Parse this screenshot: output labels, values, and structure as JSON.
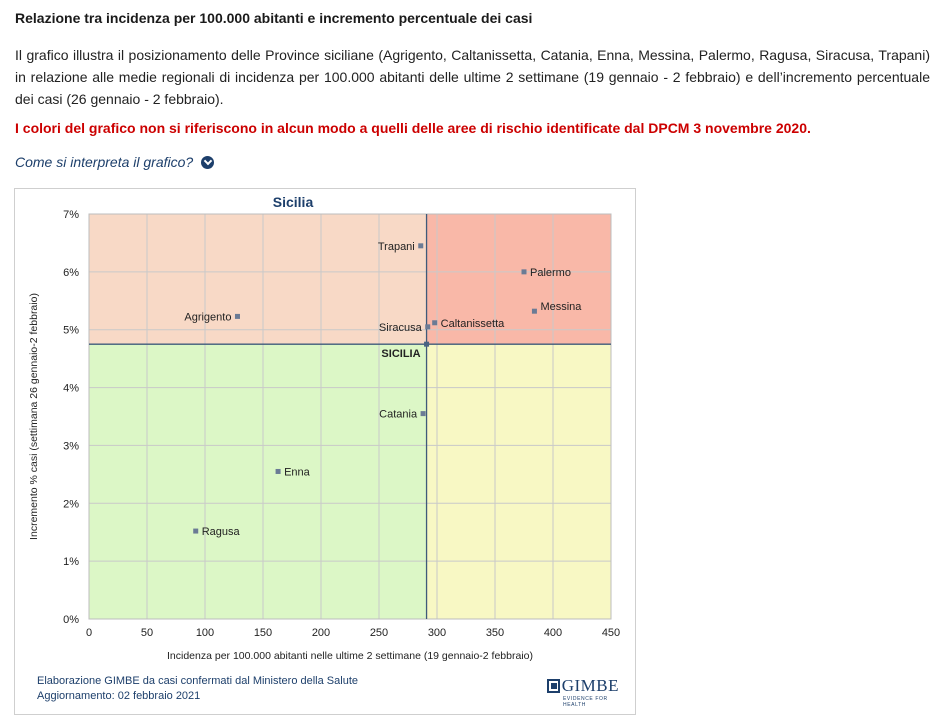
{
  "page": {
    "heading": "Relazione tra incidenza per 100.000 abitanti e incremento percentuale dei casi",
    "intro": "Il grafico illustra il posizionamento delle Province siciliane (Agrigento, Caltanissetta, Catania, Enna, Messina, Palermo, Ragusa, Siracusa, Trapani) in relazione alle medie regionali di incidenza per 100.000 abitanti delle ultime 2 settimane (19 gennaio - 2 febbraio) e dell’incremento percentuale dei casi (26 gennaio - 2 febbraio).",
    "warning": "I colori del grafico non si riferiscono in alcun modo a quelli delle aree di rischio identificate dal DPCM 3 novembre 2020.",
    "help_link": "Come si interpreta il grafico?",
    "help_icon": "chevron-down-circle-icon"
  },
  "chart_data": {
    "type": "scatter",
    "title": "Sicilia",
    "xlabel": "Incidenza per 100.000 abitanti nelle ultime 2 settimane (19 gennaio-2 febbraio)",
    "ylabel": "Incremento % casi (settimana 26 gennaio-2 febbraio)",
    "xlim": [
      0,
      450
    ],
    "ylim": [
      0,
      7
    ],
    "x_ticks": [
      "0",
      "50",
      "100",
      "150",
      "200",
      "250",
      "300",
      "350",
      "400",
      "450"
    ],
    "y_ticks": [
      "0%",
      "1%",
      "2%",
      "3%",
      "4%",
      "5%",
      "6%",
      "7%"
    ],
    "grid": true,
    "reference": {
      "label": "SICILIA",
      "x": 291,
      "y": 4.75
    },
    "quadrant_colors": {
      "top_left": "#f8d9c6",
      "top_right": "#f9b8a8",
      "bottom_left": "#dcf7c6",
      "bottom_right": "#f8f8c4"
    },
    "point_color": "#6b7b95",
    "points": [
      {
        "label": "Trapani",
        "x": 286,
        "y": 6.45
      },
      {
        "label": "Palermo",
        "x": 375,
        "y": 6.0
      },
      {
        "label": "Messina",
        "x": 384,
        "y": 5.32
      },
      {
        "label": "Agrigento",
        "x": 128,
        "y": 5.23
      },
      {
        "label": "Siracusa",
        "x": 292,
        "y": 5.05
      },
      {
        "label": "Caltanissetta",
        "x": 298,
        "y": 5.12
      },
      {
        "label": "Catania",
        "x": 288,
        "y": 3.55
      },
      {
        "label": "Enna",
        "x": 163,
        "y": 2.55
      },
      {
        "label": "Ragusa",
        "x": 92,
        "y": 1.52
      }
    ]
  },
  "footer": {
    "line1": "Elaborazione GIMBE da casi confermati dal Ministero della Salute",
    "line2": "Aggiornamento: 02 febbraio 2021"
  },
  "logo": {
    "name": "GIMBE",
    "tagline": "EVIDENCE FOR HEALTH"
  }
}
